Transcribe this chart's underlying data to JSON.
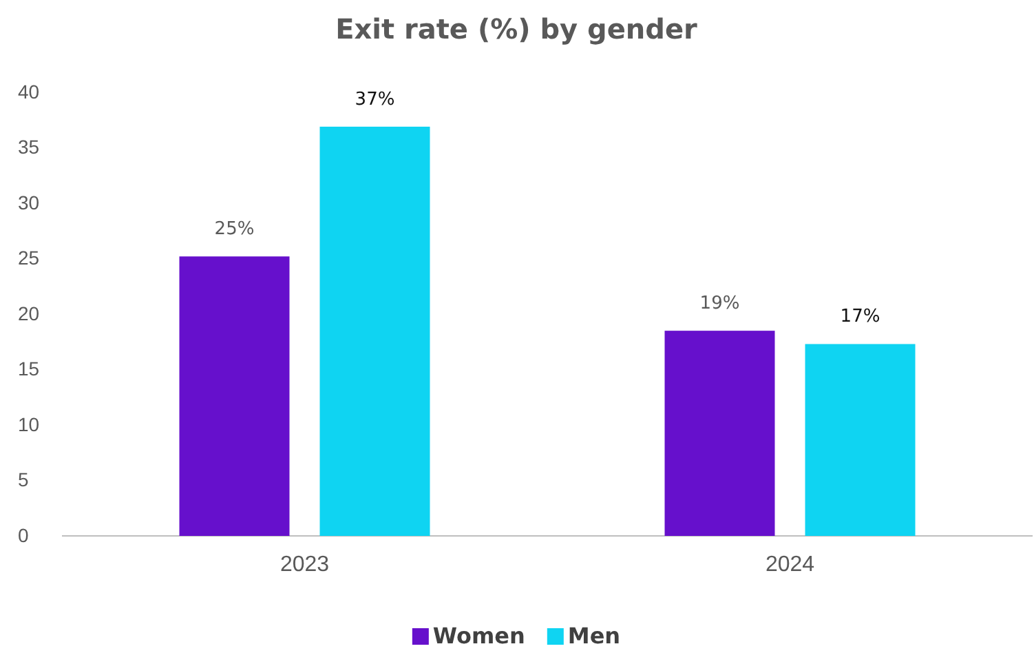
{
  "chart_data": {
    "type": "bar",
    "title": "Exit rate (%) by gender",
    "categories": [
      "2023",
      "2024"
    ],
    "series": [
      {
        "name": "Women",
        "color": "#6610cc",
        "values": [
          25.2,
          18.5
        ],
        "value_labels": [
          "25%",
          "19%"
        ]
      },
      {
        "name": "Men",
        "color": "#0fd4f2",
        "values": [
          36.9,
          17.3
        ],
        "value_labels": [
          "37%",
          "17%"
        ]
      }
    ],
    "ylim": [
      0,
      40
    ],
    "yticks": [
      0,
      5,
      10,
      15,
      20,
      25,
      30,
      35,
      40
    ],
    "grid": false,
    "legend": "bottom"
  }
}
